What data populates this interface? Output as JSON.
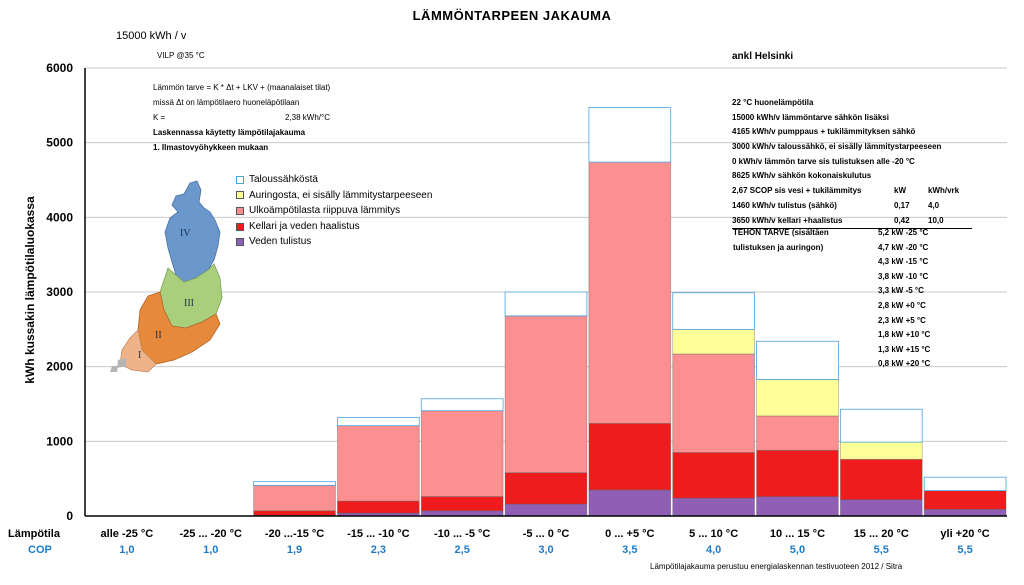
{
  "header": {
    "title": "LÄMMÖNTARPEEN JAKAUMA",
    "annual": "15000  kWh / v",
    "vilp": "VILP @35 °C",
    "location": "ankl Helsinki"
  },
  "formula": {
    "line1": "Lämmön tarve  =  K * Δt + LKV + (maanalaiset tilat)",
    "line2": "missä Δt on lämpötilaero huoneläpötilaan",
    "k_label": "K =",
    "k_value": "2,38  kWh/°C",
    "line4": "Laskennassa käytetty lämpötilajakauma",
    "line5": "1.   Ilmastovyöhykkeen mukaan"
  },
  "info": [
    "22  °C huonelämpötila",
    "15000  kWh/v lämmöntarve sähkön lisäksi",
    "4165  kWh/v pumppaus + tukilämmityksen sähkö",
    "3000  kWh/v   taloussähkö, ei sisälly lämmitystarpeeseen",
    "0   kWh/v     lämmön tarve sis tulistuksen alle -20 °C",
    "8625  kWh/v  sähkön kokonaiskulutus"
  ],
  "info_table": [
    {
      "label": "2,67 SCOP sis vesi + tukilämmitys",
      "kw": "kW",
      "kwh": "kWh/vrk"
    },
    {
      "label": "1460  kWh/v  tulistus (sähkö)",
      "kw": "0,17",
      "kwh": "4,0"
    },
    {
      "label": "3650  kWh/v  kellari +haalistus",
      "kw": "0,42",
      "kwh": "10,0"
    }
  ],
  "tehon": {
    "line1": "TEHON TARVE (sisältäen",
    "line2": "tulistuksen ja auringon)",
    "rows": [
      "5,2  kW  -25 °C",
      "4,7  kW  -20 °C",
      "4,3  kW  -15 °C",
      "3,8  kW  -10 °C",
      "3,3  kW  -5  °C",
      "2,8  kW  +0  °C",
      "2,3  kW  +5  °C",
      "1,8  kW  +10 °C",
      "1,3  kW  +15 °C",
      "0,8  kW  +20 °C"
    ]
  },
  "map_labels": [
    "IV",
    "III",
    "II",
    "I"
  ],
  "footer": {
    "lampotila_label": "Lämpötila",
    "cop_label": "COP",
    "source": "Lämpötilajakauma perustuu energialaskennan testivuoteen 2012 / Sitra"
  },
  "chart_data": {
    "type": "bar",
    "stacked": true,
    "ylabel": "kWh kussakin lämpötilaluokassa",
    "ylim": [
      0,
      6000
    ],
    "yticks": [
      0,
      1000,
      2000,
      3000,
      4000,
      5000,
      6000
    ],
    "grid": true,
    "categories": [
      "alle -25 °C",
      "-25 ... -20 °C",
      "-20 ...-15 °C",
      "-15 ... -10 °C",
      "-10 ... -5 °C",
      "-5 ... 0 °C",
      "0 ... +5 °C",
      "5 ... 10 °C",
      "10 ... 15 °C",
      "15 ... 20 °C",
      "yli +20 °C"
    ],
    "cop": [
      "1,0",
      "1,0",
      "1,9",
      "2,3",
      "2,5",
      "3,0",
      "3,5",
      "4,0",
      "5,0",
      "5,5",
      "5,5"
    ],
    "series": [
      {
        "name": "Veden tulistus",
        "color": "#8e5fb4",
        "values": [
          0,
          0,
          10,
          40,
          70,
          160,
          350,
          240,
          260,
          220,
          90
        ]
      },
      {
        "name": "Kellari ja veden haalistus",
        "color": "#ee1c1c",
        "values": [
          0,
          0,
          60,
          160,
          190,
          420,
          890,
          610,
          620,
          540,
          250
        ]
      },
      {
        "name": "Ulkoämpötilasta riippuva lämmitys",
        "color": "#fc9090",
        "values": [
          0,
          0,
          340,
          1010,
          1150,
          2100,
          3500,
          1320,
          460,
          0,
          0
        ]
      },
      {
        "name": "Auringosta, ei sisälly lämmitystarpeeseen",
        "color": "#ffff99",
        "values": [
          0,
          0,
          0,
          0,
          0,
          0,
          0,
          330,
          490,
          230,
          0
        ]
      },
      {
        "name": "Taloussähköstä",
        "color": "#ffffff",
        "values": [
          0,
          0,
          50,
          110,
          160,
          320,
          730,
          490,
          510,
          440,
          180
        ]
      }
    ],
    "legend": [
      "Taloussähköstä",
      "Auringosta, ei sisälly lämmitystarpeeseen",
      "Ulkoämpötilasta riippuva lämmitys",
      "Kellari ja veden haalistus",
      "Veden tulistus"
    ],
    "legend_colors": [
      "#ffffff",
      "#ffff99",
      "#fc9090",
      "#ee1c1c",
      "#8e5fb4"
    ],
    "legend_border": "#4aa3df"
  }
}
